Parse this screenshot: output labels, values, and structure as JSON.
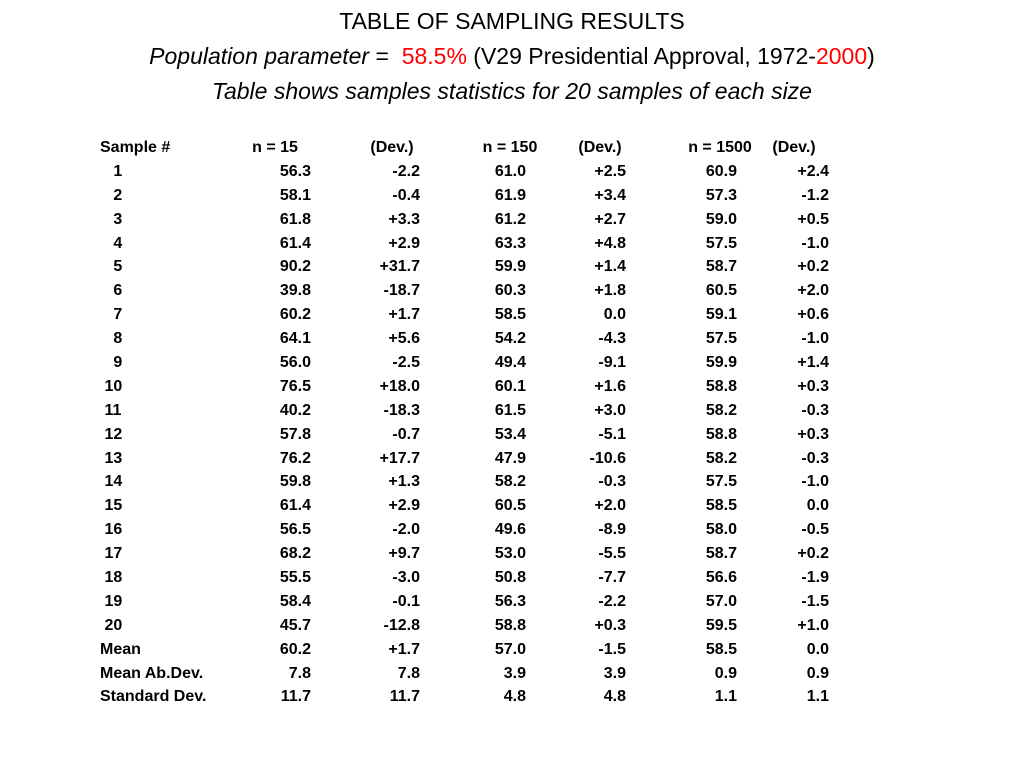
{
  "title": {
    "line1": "TABLE OF SAMPLING RESULTS",
    "line2_label": "Population parameter",
    "line2_eq": " =  ",
    "line2_value": "58.5%",
    "line2_mid": " (V29 Presidential Approval, 1972-",
    "line2_year": "2000",
    "line2_end": ")",
    "line3": "Table shows samples statistics for 20 samples of each size"
  },
  "accent_color": "#ff0000",
  "table": {
    "headers": [
      "Sample #",
      "n = 15",
      "(Dev.)",
      "n = 150",
      "(Dev.)",
      "n = 1500",
      "(Dev.)"
    ],
    "rows": [
      [
        "   1",
        "56.3",
        "-2.2",
        "61.0",
        "+2.5",
        "60.9",
        "+2.4"
      ],
      [
        "   2",
        "58.1",
        "-0.4",
        "61.9",
        "+3.4",
        "57.3",
        "-1.2"
      ],
      [
        "   3",
        "61.8",
        "+3.3",
        "61.2",
        "+2.7",
        "59.0",
        "+0.5"
      ],
      [
        "   4",
        "61.4",
        "+2.9",
        "63.3",
        "+4.8",
        "57.5",
        "-1.0"
      ],
      [
        "   5",
        "90.2",
        "+31.7",
        "59.9",
        "+1.4",
        "58.7",
        "+0.2"
      ],
      [
        "   6",
        "39.8",
        "-18.7",
        "60.3",
        "+1.8",
        "60.5",
        "+2.0"
      ],
      [
        "   7",
        "60.2",
        "+1.7",
        "58.5",
        "0.0",
        "59.1",
        "+0.6"
      ],
      [
        "   8",
        "64.1",
        "+5.6",
        "54.2",
        "-4.3",
        "57.5",
        "-1.0"
      ],
      [
        "   9",
        "56.0",
        "-2.5",
        "49.4",
        "-9.1",
        "59.9",
        "+1.4"
      ],
      [
        " 10",
        "76.5",
        "+18.0",
        "60.1",
        "+1.6",
        "58.8",
        "+0.3"
      ],
      [
        " 11",
        "40.2",
        "-18.3",
        "61.5",
        "+3.0",
        "58.2",
        "-0.3"
      ],
      [
        " 12",
        "57.8",
        "-0.7",
        "53.4",
        "-5.1",
        "58.8",
        "+0.3"
      ],
      [
        " 13",
        "76.2",
        "+17.7",
        "47.9",
        "-10.6",
        "58.2",
        "-0.3"
      ],
      [
        " 14",
        "59.8",
        "+1.3",
        "58.2",
        "-0.3",
        "57.5",
        "-1.0"
      ],
      [
        " 15",
        "61.4",
        "+2.9",
        "60.5",
        "+2.0",
        "58.5",
        "0.0"
      ],
      [
        " 16",
        "56.5",
        "-2.0",
        "49.6",
        "-8.9",
        "58.0",
        "-0.5"
      ],
      [
        " 17",
        "68.2",
        "+9.7",
        "53.0",
        "-5.5",
        "58.7",
        "+0.2"
      ],
      [
        " 18",
        "55.5",
        "-3.0",
        "50.8",
        "-7.7",
        "56.6",
        "-1.9"
      ],
      [
        " 19",
        "58.4",
        "-0.1",
        "56.3",
        "-2.2",
        "57.0",
        "-1.5"
      ],
      [
        " 20",
        "45.7",
        "-12.8",
        "58.8",
        "+0.3",
        "59.5",
        "+1.0"
      ]
    ],
    "summary": [
      [
        "Mean",
        "60.2",
        "+1.7",
        "57.0",
        "-1.5",
        "58.5",
        "0.0"
      ],
      [
        "Mean Ab.Dev.",
        "7.8",
        "7.8",
        "3.9",
        "3.9",
        "0.9",
        "0.9"
      ],
      [
        "Standard Dev.",
        "11.7",
        "11.7",
        "4.8",
        "4.8",
        "1.1",
        "1.1"
      ]
    ]
  }
}
